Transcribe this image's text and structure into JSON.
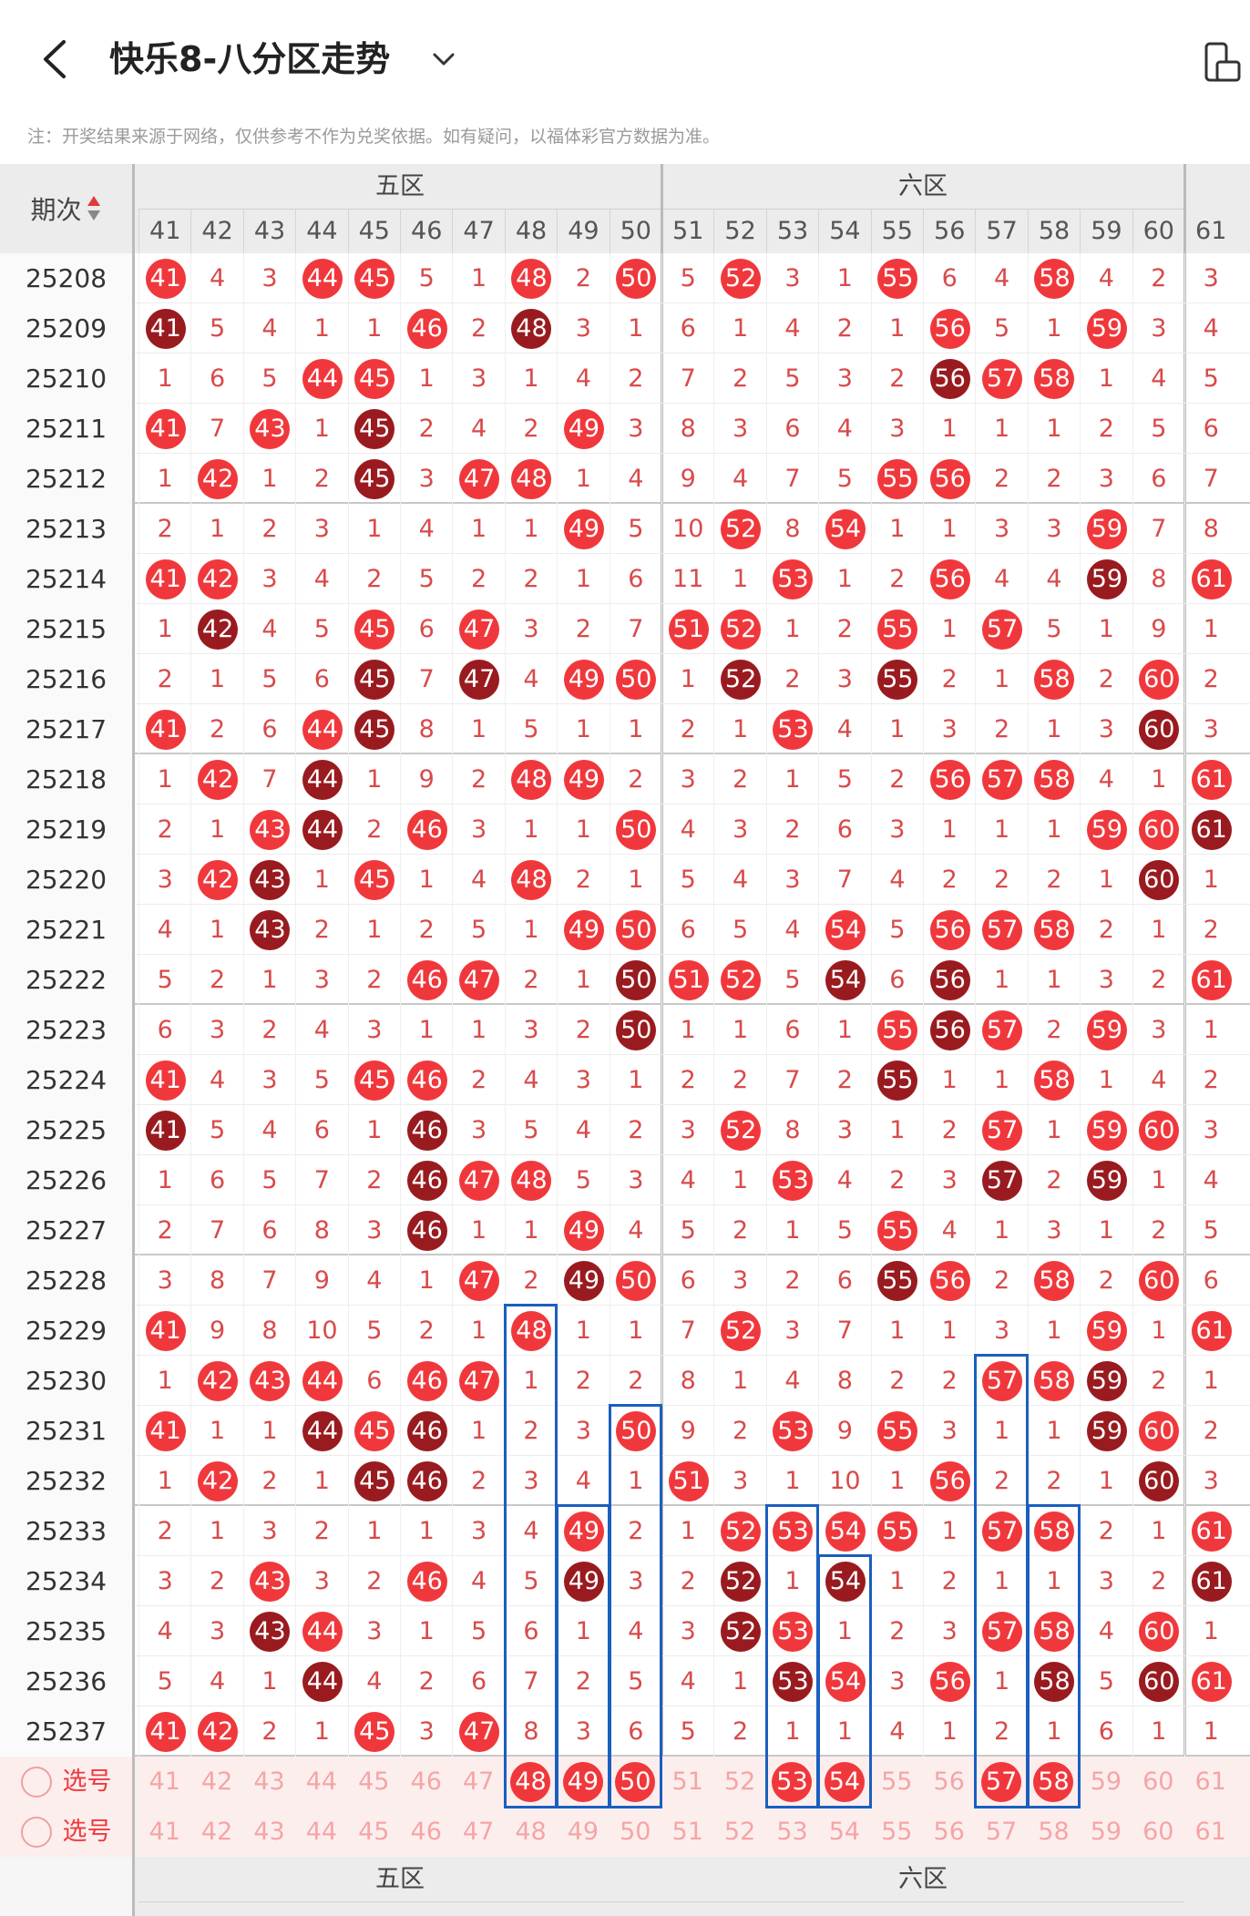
{
  "header": {
    "title": "快乐8-八分区走势"
  },
  "notice": "注：开奖结果来源于网络，仅供参考不作为兑奖依据。如有疑问，以福体彩官方数据为准。",
  "table": {
    "period_label": "期次",
    "zones": [
      {
        "label": "五区",
        "span": [
          41,
          50
        ]
      },
      {
        "label": "六区",
        "span": [
          51,
          60
        ]
      }
    ],
    "columns": [
      41,
      42,
      43,
      44,
      45,
      46,
      47,
      48,
      49,
      50,
      51,
      52,
      53,
      54,
      55,
      56,
      57,
      58,
      59,
      60,
      61
    ],
    "rows": [
      {
        "period": "25208",
        "cells": [
          "41",
          "4",
          "3",
          "44",
          "45",
          "5",
          "1",
          "48",
          "2",
          "50",
          "5",
          "52",
          "3",
          "1",
          "55",
          "6",
          "4",
          "58",
          "4",
          "2",
          "3"
        ]
      },
      {
        "period": "25209",
        "cells": [
          "41",
          "5",
          "4",
          "1",
          "1",
          "46",
          "2",
          "48",
          "3",
          "1",
          "6",
          "1",
          "4",
          "2",
          "1",
          "56",
          "5",
          "1",
          "59",
          "3",
          "4"
        ]
      },
      {
        "period": "25210",
        "cells": [
          "1",
          "6",
          "5",
          "44",
          "45",
          "1",
          "3",
          "1",
          "4",
          "2",
          "7",
          "2",
          "5",
          "3",
          "2",
          "56",
          "57",
          "58",
          "1",
          "4",
          "5"
        ]
      },
      {
        "period": "25211",
        "cells": [
          "41",
          "7",
          "43",
          "1",
          "45",
          "2",
          "4",
          "2",
          "49",
          "3",
          "8",
          "3",
          "6",
          "4",
          "3",
          "1",
          "1",
          "1",
          "2",
          "5",
          "6"
        ]
      },
      {
        "period": "25212",
        "cells": [
          "1",
          "42",
          "1",
          "2",
          "45",
          "3",
          "47",
          "48",
          "1",
          "4",
          "9",
          "4",
          "7",
          "5",
          "55",
          "56",
          "2",
          "2",
          "3",
          "6",
          "7"
        ]
      },
      {
        "period": "25213",
        "cells": [
          "2",
          "1",
          "2",
          "3",
          "1",
          "4",
          "1",
          "1",
          "49",
          "5",
          "10",
          "52",
          "8",
          "54",
          "1",
          "1",
          "3",
          "3",
          "59",
          "7",
          "8"
        ]
      },
      {
        "period": "25214",
        "cells": [
          "41",
          "42",
          "3",
          "4",
          "2",
          "5",
          "2",
          "2",
          "1",
          "6",
          "11",
          "1",
          "53",
          "1",
          "2",
          "56",
          "4",
          "4",
          "59",
          "8",
          "61"
        ]
      },
      {
        "period": "25215",
        "cells": [
          "1",
          "42",
          "4",
          "5",
          "45",
          "6",
          "47",
          "3",
          "2",
          "7",
          "51",
          "52",
          "1",
          "2",
          "55",
          "1",
          "57",
          "5",
          "1",
          "9",
          "1"
        ]
      },
      {
        "period": "25216",
        "cells": [
          "2",
          "1",
          "5",
          "6",
          "45",
          "7",
          "47",
          "4",
          "49",
          "50",
          "1",
          "52",
          "2",
          "3",
          "55",
          "2",
          "1",
          "58",
          "2",
          "60",
          "2"
        ]
      },
      {
        "period": "25217",
        "cells": [
          "41",
          "2",
          "6",
          "44",
          "45",
          "8",
          "1",
          "5",
          "1",
          "1",
          "2",
          "1",
          "53",
          "4",
          "1",
          "3",
          "2",
          "1",
          "3",
          "60",
          "3"
        ]
      },
      {
        "period": "25218",
        "cells": [
          "1",
          "42",
          "7",
          "44",
          "1",
          "9",
          "2",
          "48",
          "49",
          "2",
          "3",
          "2",
          "1",
          "5",
          "2",
          "56",
          "57",
          "58",
          "4",
          "1",
          "61"
        ]
      },
      {
        "period": "25219",
        "cells": [
          "2",
          "1",
          "43",
          "44",
          "2",
          "46",
          "3",
          "1",
          "1",
          "50",
          "4",
          "3",
          "2",
          "6",
          "3",
          "1",
          "1",
          "1",
          "59",
          "60",
          "61"
        ]
      },
      {
        "period": "25220",
        "cells": [
          "3",
          "42",
          "43",
          "1",
          "45",
          "1",
          "4",
          "48",
          "2",
          "1",
          "5",
          "4",
          "3",
          "7",
          "4",
          "2",
          "2",
          "2",
          "1",
          "60",
          "1"
        ]
      },
      {
        "period": "25221",
        "cells": [
          "4",
          "1",
          "43",
          "2",
          "1",
          "2",
          "5",
          "1",
          "49",
          "50",
          "6",
          "5",
          "4",
          "54",
          "5",
          "56",
          "57",
          "58",
          "2",
          "1",
          "2"
        ]
      },
      {
        "period": "25222",
        "cells": [
          "5",
          "2",
          "1",
          "3",
          "2",
          "46",
          "47",
          "2",
          "1",
          "50",
          "51",
          "52",
          "5",
          "54",
          "6",
          "56",
          "1",
          "1",
          "3",
          "2",
          "61"
        ]
      },
      {
        "period": "25223",
        "cells": [
          "6",
          "3",
          "2",
          "4",
          "3",
          "1",
          "1",
          "3",
          "2",
          "50",
          "1",
          "1",
          "6",
          "1",
          "55",
          "56",
          "57",
          "2",
          "59",
          "3",
          "1"
        ]
      },
      {
        "period": "25224",
        "cells": [
          "41",
          "4",
          "3",
          "5",
          "45",
          "46",
          "2",
          "4",
          "3",
          "1",
          "2",
          "2",
          "7",
          "2",
          "55",
          "1",
          "1",
          "58",
          "1",
          "4",
          "2"
        ]
      },
      {
        "period": "25225",
        "cells": [
          "41",
          "5",
          "4",
          "6",
          "1",
          "46",
          "3",
          "5",
          "4",
          "2",
          "3",
          "52",
          "8",
          "3",
          "1",
          "2",
          "57",
          "1",
          "59",
          "60",
          "3"
        ]
      },
      {
        "period": "25226",
        "cells": [
          "1",
          "6",
          "5",
          "7",
          "2",
          "46",
          "47",
          "48",
          "5",
          "3",
          "4",
          "1",
          "53",
          "4",
          "2",
          "3",
          "57",
          "2",
          "59",
          "1",
          "4"
        ]
      },
      {
        "period": "25227",
        "cells": [
          "2",
          "7",
          "6",
          "8",
          "3",
          "46",
          "1",
          "1",
          "49",
          "4",
          "5",
          "2",
          "1",
          "5",
          "55",
          "4",
          "1",
          "3",
          "1",
          "2",
          "5"
        ]
      },
      {
        "period": "25228",
        "cells": [
          "3",
          "8",
          "7",
          "9",
          "4",
          "1",
          "47",
          "2",
          "49",
          "50",
          "6",
          "3",
          "2",
          "6",
          "55",
          "56",
          "2",
          "58",
          "2",
          "60",
          "6"
        ]
      },
      {
        "period": "25229",
        "cells": [
          "41",
          "9",
          "8",
          "10",
          "5",
          "2",
          "1",
          "48",
          "1",
          "1",
          "7",
          "52",
          "3",
          "7",
          "1",
          "1",
          "3",
          "1",
          "59",
          "1",
          "61"
        ]
      },
      {
        "period": "25230",
        "cells": [
          "1",
          "42",
          "43",
          "44",
          "6",
          "46",
          "47",
          "1",
          "2",
          "2",
          "8",
          "1",
          "4",
          "8",
          "2",
          "2",
          "57",
          "58",
          "59",
          "2",
          "1"
        ]
      },
      {
        "period": "25231",
        "cells": [
          "41",
          "1",
          "1",
          "44",
          "45",
          "46",
          "1",
          "2",
          "3",
          "50",
          "9",
          "2",
          "53",
          "9",
          "55",
          "3",
          "1",
          "1",
          "59",
          "60",
          "2"
        ]
      },
      {
        "period": "25232",
        "cells": [
          "1",
          "42",
          "2",
          "1",
          "45",
          "46",
          "2",
          "3",
          "4",
          "1",
          "51",
          "3",
          "1",
          "10",
          "1",
          "56",
          "2",
          "2",
          "1",
          "60",
          "3"
        ]
      },
      {
        "period": "25233",
        "cells": [
          "2",
          "1",
          "3",
          "2",
          "1",
          "1",
          "3",
          "4",
          "49",
          "2",
          "1",
          "52",
          "53",
          "54",
          "55",
          "1",
          "57",
          "58",
          "2",
          "1",
          "61"
        ]
      },
      {
        "period": "25234",
        "cells": [
          "3",
          "2",
          "43",
          "3",
          "2",
          "46",
          "4",
          "5",
          "49",
          "3",
          "2",
          "52",
          "1",
          "54",
          "1",
          "2",
          "1",
          "1",
          "3",
          "2",
          "61"
        ]
      },
      {
        "period": "25235",
        "cells": [
          "4",
          "3",
          "43",
          "44",
          "3",
          "1",
          "5",
          "6",
          "1",
          "4",
          "3",
          "52",
          "53",
          "1",
          "2",
          "3",
          "57",
          "58",
          "4",
          "60",
          "1"
        ]
      },
      {
        "period": "25236",
        "cells": [
          "5",
          "4",
          "1",
          "44",
          "4",
          "2",
          "6",
          "7",
          "2",
          "5",
          "4",
          "1",
          "53",
          "54",
          "3",
          "56",
          "1",
          "58",
          "5",
          "60",
          "61"
        ]
      },
      {
        "period": "25237",
        "cells": [
          "41",
          "42",
          "2",
          "1",
          "45",
          "3",
          "47",
          "8",
          "3",
          "6",
          "5",
          "2",
          "1",
          "1",
          "4",
          "1",
          "2",
          "1",
          "6",
          "1",
          "1"
        ]
      }
    ],
    "pick_rows": [
      {
        "label": "选号",
        "selected": [
          48,
          49,
          50,
          53,
          54,
          57,
          58
        ]
      },
      {
        "label": "选号",
        "selected": []
      }
    ],
    "footer_zones": [
      "五区",
      "六区"
    ],
    "footer_dash": "-"
  },
  "colors": {
    "ball_red": "#f0383c",
    "ball_dark": "#991b1f",
    "miss_text": "#d94a4a",
    "box_blue": "#1b5fbf",
    "pick_bg": "#fdeeee"
  }
}
